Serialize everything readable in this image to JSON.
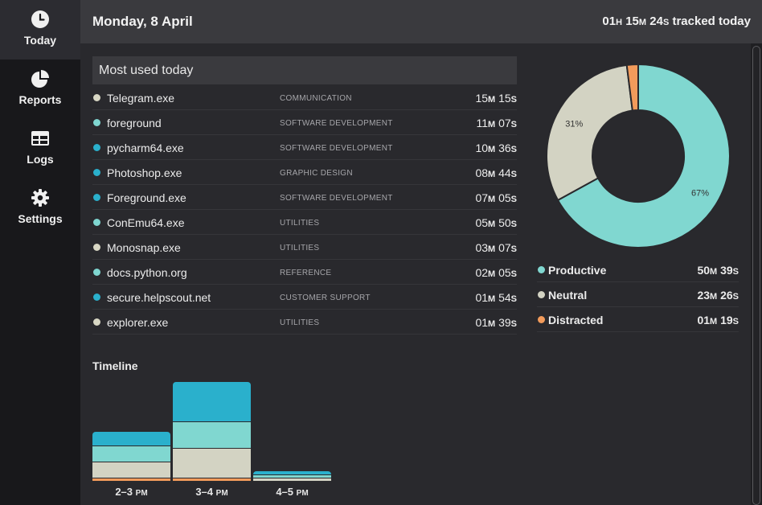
{
  "sidebar": {
    "items": [
      {
        "label": "Today",
        "icon": "clock-icon",
        "active": true
      },
      {
        "label": "Reports",
        "icon": "pie-chart-icon",
        "active": false
      },
      {
        "label": "Logs",
        "icon": "table-icon",
        "active": false
      },
      {
        "label": "Settings",
        "icon": "gear-icon",
        "active": false
      }
    ]
  },
  "header": {
    "date": "Monday, 8 April",
    "tracked": {
      "h": "01",
      "h_unit": "H",
      "m": "15",
      "m_unit": "M",
      "s": "24",
      "s_unit": "S",
      "suffix": "tracked today"
    }
  },
  "colors": {
    "communication": "#d8d7c4",
    "software": "#7fd6d0",
    "dev_blue": "#2ab0cc",
    "productive": "#80d7d0",
    "neutral": "#d3d3c3",
    "distracted": "#f29b5b"
  },
  "most_used": {
    "title": "Most used today",
    "rows": [
      {
        "name": "Telegram.exe",
        "category": "COMMUNICATION",
        "m": "15",
        "s": "15",
        "color": "#d8d7c4"
      },
      {
        "name": "foreground",
        "category": "SOFTWARE DEVELOPMENT",
        "m": "11",
        "s": "07",
        "color": "#7fd6d0"
      },
      {
        "name": "pycharm64.exe",
        "category": "SOFTWARE DEVELOPMENT",
        "m": "10",
        "s": "36",
        "color": "#2ab0cc"
      },
      {
        "name": "Photoshop.exe",
        "category": "GRAPHIC DESIGN",
        "m": "08",
        "s": "44",
        "color": "#2ab0cc"
      },
      {
        "name": "Foreground.exe",
        "category": "SOFTWARE DEVELOPMENT",
        "m": "07",
        "s": "05",
        "color": "#2ab0cc"
      },
      {
        "name": "ConEmu64.exe",
        "category": "UTILITIES",
        "m": "05",
        "s": "50",
        "color": "#7fd6d0"
      },
      {
        "name": "Monosnap.exe",
        "category": "UTILITIES",
        "m": "03",
        "s": "07",
        "color": "#d8d7c4"
      },
      {
        "name": "docs.python.org",
        "category": "REFERENCE",
        "m": "02",
        "s": "05",
        "color": "#7fd6d0"
      },
      {
        "name": "secure.helpscout.net",
        "category": "CUSTOMER SUPPORT",
        "m": "01",
        "s": "54",
        "color": "#2ab0cc"
      },
      {
        "name": "explorer.exe",
        "category": "UTILITIES",
        "m": "01",
        "s": "39",
        "color": "#d8d7c4"
      }
    ]
  },
  "timeline": {
    "title": "Timeline",
    "bars": [
      {
        "label": "2–3",
        "ampm": "PM",
        "segments": [
          {
            "value": 17,
            "color": "#2ab0cc"
          },
          {
            "value": 20,
            "color": "#80d7d0"
          },
          {
            "value": 20,
            "color": "#d3d3c3"
          },
          {
            "value": 4,
            "color": "#f29b5b"
          }
        ]
      },
      {
        "label": "3–4",
        "ampm": "PM",
        "segments": [
          {
            "value": 49,
            "color": "#2ab0cc"
          },
          {
            "value": 33,
            "color": "#80d7d0"
          },
          {
            "value": 37,
            "color": "#d3d3c3"
          },
          {
            "value": 4,
            "color": "#f29b5b"
          }
        ]
      },
      {
        "label": "4–5",
        "ampm": "PM",
        "segments": [
          {
            "value": 4,
            "color": "#2ab0cc"
          },
          {
            "value": 4,
            "color": "#80d7d0"
          },
          {
            "value": 4,
            "color": "#d3d3c3"
          }
        ]
      }
    ]
  },
  "summary": {
    "chart_data": {
      "type": "pie",
      "labels": [
        "Productive",
        "Neutral",
        "Distracted"
      ],
      "values": [
        67,
        31,
        2
      ],
      "label_text": [
        "67%",
        "31%",
        ""
      ],
      "colors": [
        "#80d7d0",
        "#d3d3c3",
        "#f29b5b"
      ]
    },
    "rows": [
      {
        "name": "Productive",
        "m": "50",
        "s": "39",
        "color": "#80d7d0"
      },
      {
        "name": "Neutral",
        "m": "23",
        "s": "26",
        "color": "#d3d3c3"
      },
      {
        "name": "Distracted",
        "m": "01",
        "s": "19",
        "color": "#f29b5b"
      }
    ]
  },
  "units": {
    "m": "M",
    "s": "S"
  }
}
